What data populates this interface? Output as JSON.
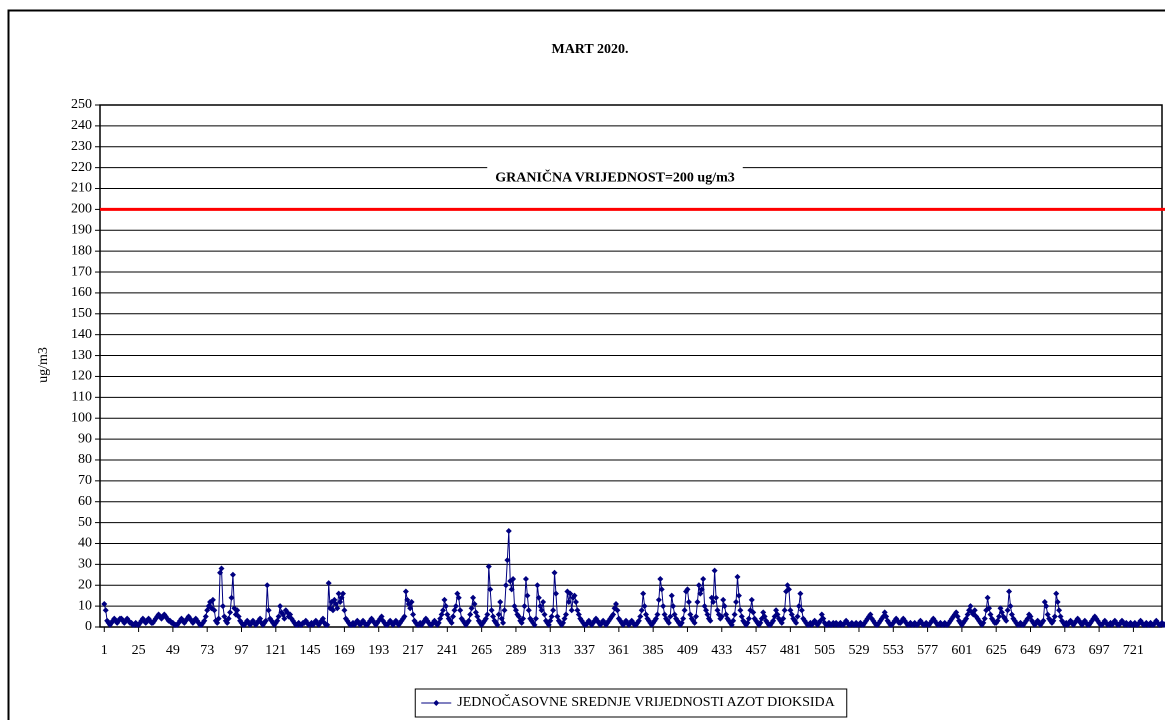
{
  "chart_data": {
    "type": "line",
    "title": "MART 2020.",
    "y_label": "ug/m3",
    "ylim": [
      0,
      250
    ],
    "yticks": [
      0,
      10,
      20,
      30,
      40,
      50,
      60,
      70,
      80,
      90,
      100,
      110,
      120,
      130,
      140,
      150,
      160,
      170,
      180,
      190,
      200,
      210,
      220,
      230,
      240,
      250
    ],
    "xlim": [
      -2,
      741
    ],
    "xticks": [
      1,
      25,
      49,
      73,
      97,
      121,
      145,
      169,
      193,
      217,
      241,
      265,
      289,
      313,
      337,
      361,
      385,
      409,
      433,
      457,
      481,
      505,
      529,
      553,
      577,
      601,
      625,
      649,
      673,
      697,
      721
    ],
    "grid": true,
    "legend": "bottom",
    "reference_line": {
      "value": 200,
      "label": "GRANIČNA VRIJEDNOST=200 ug/m3",
      "color": "#ff0000"
    },
    "x": [
      1,
      2,
      3,
      4,
      5,
      6,
      7,
      8,
      9,
      10,
      11,
      12,
      13,
      14,
      15,
      16,
      17,
      18,
      19,
      20,
      21,
      22,
      23,
      24,
      25,
      26,
      27,
      28,
      29,
      30,
      31,
      32,
      33,
      34,
      35,
      36,
      37,
      38,
      39,
      40,
      41,
      42,
      43,
      44,
      45,
      46,
      47,
      48,
      49,
      50,
      51,
      52,
      53,
      54,
      55,
      56,
      57,
      58,
      59,
      60,
      61,
      62,
      63,
      64,
      65,
      66,
      67,
      68,
      69,
      70,
      71,
      72,
      73,
      74,
      75,
      76,
      77,
      78,
      79,
      80,
      81,
      82,
      83,
      84,
      85,
      86,
      87,
      88,
      89,
      90,
      91,
      92,
      93,
      94,
      95,
      96,
      97,
      98,
      99,
      100,
      101,
      102,
      103,
      104,
      105,
      106,
      107,
      108,
      109,
      110,
      111,
      112,
      113,
      114,
      115,
      116,
      117,
      118,
      119,
      120,
      121,
      122,
      123,
      124,
      125,
      126,
      127,
      128,
      129,
      130,
      131,
      132,
      133,
      134,
      135,
      136,
      137,
      138,
      139,
      140,
      141,
      142,
      143,
      144,
      145,
      146,
      147,
      148,
      149,
      150,
      151,
      152,
      153,
      154,
      155,
      156,
      157,
      158,
      159,
      160,
      161,
      162,
      163,
      164,
      165,
      166,
      167,
      168,
      169,
      170,
      171,
      172,
      173,
      174,
      175,
      176,
      177,
      178,
      179,
      180,
      181,
      182,
      183,
      184,
      185,
      186,
      187,
      188,
      189,
      190,
      191,
      192,
      193,
      194,
      195,
      196,
      197,
      198,
      199,
      200,
      201,
      202,
      203,
      204,
      205,
      206,
      207,
      208,
      209,
      210,
      211,
      212,
      213,
      214,
      215,
      216,
      217,
      218,
      219,
      220,
      221,
      222,
      223,
      224,
      225,
      226,
      227,
      228,
      229,
      230,
      231,
      232,
      233,
      234,
      235,
      236,
      237,
      238,
      239,
      240,
      241,
      242,
      243,
      244,
      245,
      246,
      247,
      248,
      249,
      250,
      251,
      252,
      253,
      254,
      255,
      256,
      257,
      258,
      259,
      260,
      261,
      262,
      263,
      264,
      265,
      266,
      267,
      268,
      269,
      270,
      271,
      272,
      273,
      274,
      275,
      276,
      277,
      278,
      279,
      280,
      281,
      282,
      283,
      284,
      285,
      286,
      287,
      288,
      289,
      290,
      291,
      292,
      293,
      294,
      295,
      296,
      297,
      298,
      299,
      300,
      301,
      302,
      303,
      304,
      305,
      306,
      307,
      308,
      309,
      310,
      311,
      312,
      313,
      314,
      315,
      316,
      317,
      318,
      319,
      320,
      321,
      322,
      323,
      324,
      325,
      326,
      327,
      328,
      329,
      330,
      331,
      332,
      333,
      334,
      335,
      336,
      337,
      338,
      339,
      340,
      341,
      342,
      343,
      344,
      345,
      346,
      347,
      348,
      349,
      350,
      351,
      352,
      353,
      354,
      355,
      356,
      357,
      358,
      359,
      360,
      361,
      362,
      363,
      364,
      365,
      366,
      367,
      368,
      369,
      370,
      371,
      372,
      373,
      374,
      375,
      376,
      377,
      378,
      379,
      380,
      381,
      382,
      383,
      384,
      385,
      386,
      387,
      388,
      389,
      390,
      391,
      392,
      393,
      394,
      395,
      396,
      397,
      398,
      399,
      400,
      401,
      402,
      403,
      404,
      405,
      406,
      407,
      408,
      409,
      410,
      411,
      412,
      413,
      414,
      415,
      416,
      417,
      418,
      419,
      420,
      421,
      422,
      423,
      424,
      425,
      426,
      427,
      428,
      429,
      430,
      431,
      432,
      433,
      434,
      435,
      436,
      437,
      438,
      439,
      440,
      441,
      442,
      443,
      444,
      445,
      446,
      447,
      448,
      449,
      450,
      451,
      452,
      453,
      454,
      455,
      456,
      457,
      458,
      459,
      460,
      461,
      462,
      463,
      464,
      465,
      466,
      467,
      468,
      469,
      470,
      471,
      472,
      473,
      474,
      475,
      476,
      477,
      478,
      479,
      480,
      481,
      482,
      483,
      484,
      485,
      486,
      487,
      488,
      489,
      490,
      491,
      492,
      493,
      494,
      495,
      496,
      497,
      498,
      499,
      500,
      501,
      502,
      503,
      504,
      505,
      506,
      507,
      508,
      509,
      510,
      511,
      512,
      513,
      514,
      515,
      516,
      517,
      518,
      519,
      520,
      521,
      522,
      523,
      524,
      525,
      526,
      527,
      528,
      529,
      530,
      531,
      532,
      533,
      534,
      535,
      536,
      537,
      538,
      539,
      540,
      541,
      542,
      543,
      544,
      545,
      546,
      547,
      548,
      549,
      550,
      551,
      552,
      553,
      554,
      555,
      556,
      557,
      558,
      559,
      560,
      561,
      562,
      563,
      564,
      565,
      566,
      567,
      568,
      569,
      570,
      571,
      572,
      573,
      574,
      575,
      576,
      577,
      578,
      579,
      580,
      581,
      582,
      583,
      584,
      585,
      586,
      587,
      588,
      589,
      590,
      591,
      592,
      593,
      594,
      595,
      596,
      597,
      598,
      599,
      600,
      601,
      602,
      603,
      604,
      605,
      606,
      607,
      608,
      609,
      610,
      611,
      612,
      613,
      614,
      615,
      616,
      617,
      618,
      619,
      620,
      621,
      622,
      623,
      624,
      625,
      626,
      627,
      628,
      629,
      630,
      631,
      632,
      633,
      634,
      635,
      636,
      637,
      638,
      639,
      640,
      641,
      642,
      643,
      644,
      645,
      646,
      647,
      648,
      649,
      650,
      651,
      652,
      653,
      654,
      655,
      656,
      657,
      658,
      659,
      660,
      661,
      662,
      663,
      664,
      665,
      666,
      667,
      668,
      669,
      670,
      671,
      672,
      673,
      674,
      675,
      676,
      677,
      678,
      679,
      680,
      681,
      682,
      683,
      684,
      685,
      686,
      687,
      688,
      689,
      690,
      691,
      692,
      693,
      694,
      695,
      696,
      697,
      698,
      699,
      700,
      701,
      702,
      703,
      704,
      705,
      706,
      707,
      708,
      709,
      710,
      711,
      712,
      713,
      714,
      715,
      716,
      717,
      718,
      719,
      720,
      721,
      722,
      723,
      724,
      725,
      726,
      727,
      728,
      729,
      730,
      731,
      732,
      733,
      734,
      735,
      736,
      737,
      738,
      739,
      740,
      741,
      742,
      743,
      744
    ],
    "series": [
      {
        "name": "JEDNOČASOVNE SREDNJE VRIJEDNOSTI AZOT DIOKSIDA",
        "color": "#000080",
        "values": [
          11,
          8,
          3,
          2,
          1,
          2,
          3,
          4,
          3,
          2,
          3,
          4,
          4,
          3,
          2,
          3,
          4,
          3,
          2,
          2,
          1,
          1,
          2,
          1,
          1,
          2,
          3,
          4,
          3,
          2,
          3,
          4,
          3,
          2,
          2,
          3,
          4,
          5,
          6,
          5,
          4,
          5,
          6,
          5,
          4,
          3,
          3,
          2,
          2,
          1,
          1,
          1,
          2,
          3,
          4,
          3,
          2,
          3,
          4,
          5,
          4,
          3,
          2,
          3,
          4,
          3,
          2,
          1,
          1,
          2,
          3,
          5,
          8,
          10,
          12,
          9,
          13,
          8,
          3,
          2,
          4,
          26,
          28,
          10,
          5,
          3,
          2,
          4,
          7,
          14,
          25,
          9,
          6,
          8,
          5,
          3,
          2,
          1,
          1,
          2,
          3,
          2,
          1,
          2,
          3,
          2,
          1,
          2,
          3,
          4,
          2,
          1,
          2,
          3,
          20,
          8,
          4,
          3,
          2,
          1,
          2,
          3,
          5,
          10,
          7,
          6,
          4,
          8,
          7,
          5,
          6,
          4,
          3,
          2,
          1,
          1,
          2,
          1,
          1,
          2,
          2,
          3,
          2,
          1,
          1,
          2,
          1,
          2,
          3,
          2,
          1,
          2,
          3,
          4,
          2,
          1,
          1,
          21,
          9,
          12,
          8,
          13,
          11,
          9,
          16,
          12,
          14,
          16,
          8,
          4,
          3,
          2,
          1,
          1,
          2,
          1,
          2,
          3,
          2,
          1,
          2,
          3,
          2,
          1,
          1,
          2,
          3,
          4,
          3,
          2,
          1,
          2,
          3,
          4,
          5,
          3,
          2,
          1,
          1,
          2,
          3,
          2,
          1,
          2,
          3,
          2,
          1,
          2,
          3,
          4,
          5,
          17,
          13,
          11,
          9,
          12,
          6,
          3,
          2,
          1,
          1,
          2,
          1,
          2,
          3,
          4,
          3,
          2,
          1,
          1,
          2,
          3,
          2,
          1,
          2,
          4,
          6,
          8,
          13,
          10,
          6,
          4,
          3,
          2,
          5,
          8,
          10,
          16,
          14,
          8,
          4,
          3,
          2,
          1,
          2,
          3,
          6,
          9,
          14,
          11,
          7,
          5,
          3,
          2,
          1,
          2,
          3,
          4,
          6,
          29,
          18,
          8,
          5,
          3,
          2,
          1,
          6,
          12,
          4,
          2,
          8,
          20,
          32,
          46,
          22,
          18,
          23,
          10,
          8,
          6,
          5,
          3,
          2,
          4,
          10,
          23,
          15,
          8,
          4,
          3,
          2,
          1,
          4,
          20,
          14,
          10,
          8,
          12,
          6,
          3,
          2,
          1,
          3,
          5,
          8,
          26,
          16,
          5,
          3,
          2,
          1,
          2,
          4,
          6,
          17,
          12,
          16,
          8,
          14,
          15,
          12,
          8,
          6,
          4,
          3,
          2,
          1,
          1,
          2,
          3,
          2,
          1,
          2,
          3,
          4,
          3,
          2,
          1,
          2,
          3,
          2,
          1,
          2,
          3,
          4,
          5,
          6,
          9,
          11,
          8,
          4,
          3,
          2,
          1,
          2,
          3,
          2,
          1,
          2,
          3,
          2,
          1,
          1,
          2,
          3,
          5,
          8,
          16,
          10,
          6,
          4,
          3,
          2,
          1,
          2,
          3,
          4,
          6,
          13,
          23,
          18,
          10,
          6,
          4,
          3,
          2,
          5,
          15,
          10,
          6,
          4,
          3,
          2,
          1,
          2,
          4,
          8,
          17,
          18,
          12,
          6,
          4,
          3,
          2,
          5,
          12,
          20,
          16,
          18,
          23,
          10,
          8,
          6,
          4,
          3,
          14,
          12,
          27,
          14,
          8,
          6,
          4,
          5,
          13,
          10,
          6,
          4,
          3,
          2,
          1,
          3,
          6,
          12,
          24,
          15,
          8,
          5,
          3,
          2,
          1,
          2,
          4,
          8,
          13,
          7,
          4,
          3,
          2,
          1,
          2,
          4,
          7,
          5,
          3,
          2,
          1,
          1,
          2,
          3,
          5,
          8,
          6,
          4,
          3,
          2,
          4,
          8,
          17,
          20,
          18,
          8,
          6,
          4,
          3,
          2,
          5,
          10,
          16,
          8,
          4,
          3,
          2,
          1,
          1,
          2,
          1,
          2,
          3,
          2,
          1,
          2,
          3,
          6,
          4,
          2,
          1,
          1,
          2,
          1,
          1,
          2,
          1,
          2,
          1,
          1,
          2,
          1,
          1,
          2,
          3,
          2,
          1,
          1,
          2,
          1,
          1,
          2,
          1,
          1,
          2,
          1,
          1,
          2,
          3,
          4,
          5,
          6,
          4,
          3,
          2,
          1,
          1,
          2,
          3,
          4,
          5,
          7,
          5,
          3,
          2,
          1,
          1,
          2,
          3,
          4,
          3,
          2,
          2,
          3,
          4,
          3,
          2,
          1,
          1,
          2,
          1,
          1,
          2,
          1,
          1,
          2,
          3,
          2,
          1,
          1,
          2,
          1,
          1,
          2,
          3,
          4,
          3,
          2,
          1,
          1,
          2,
          1,
          1,
          2,
          1,
          1,
          2,
          3,
          4,
          5,
          6,
          7,
          5,
          3,
          2,
          1,
          2,
          3,
          4,
          6,
          8,
          10,
          7,
          6,
          8,
          5,
          4,
          3,
          2,
          1,
          2,
          4,
          8,
          14,
          9,
          6,
          4,
          3,
          2,
          2,
          3,
          5,
          9,
          7,
          5,
          4,
          3,
          8,
          17,
          10,
          6,
          4,
          3,
          2,
          1,
          1,
          2,
          1,
          1,
          2,
          3,
          4,
          6,
          5,
          3,
          2,
          1,
          2,
          3,
          2,
          1,
          2,
          3,
          12,
          10,
          6,
          4,
          3,
          2,
          3,
          5,
          16,
          12,
          8,
          5,
          3,
          2,
          1,
          2,
          1,
          2,
          3,
          2,
          1,
          2,
          3,
          4,
          3,
          2,
          1,
          2,
          3,
          2,
          1,
          1,
          2,
          3,
          4,
          5,
          4,
          3,
          2,
          1,
          1,
          2,
          3,
          2,
          1,
          1,
          2,
          1,
          2,
          3,
          2,
          1,
          1,
          2,
          3,
          2,
          1,
          2,
          1,
          1,
          2,
          1,
          1,
          2,
          1,
          1,
          2,
          3,
          2,
          1,
          1,
          2,
          1,
          1,
          2,
          1,
          1,
          2,
          3,
          2,
          1,
          1,
          2,
          1,
          1,
          2
        ]
      }
    ]
  }
}
